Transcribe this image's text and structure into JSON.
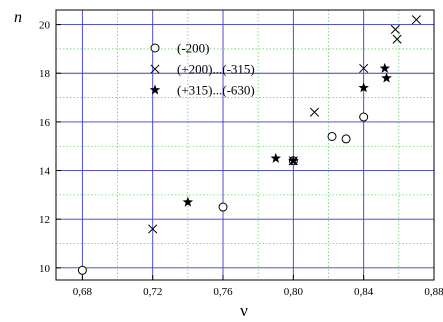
{
  "chart_data": {
    "type": "scatter",
    "xlabel": "ν",
    "ylabel": "n",
    "xlim": [
      0.665,
      0.88
    ],
    "ylim": [
      9.5,
      20.6
    ],
    "x_ticks": [
      0.68,
      0.72,
      0.76,
      0.8,
      0.84,
      0.88
    ],
    "x_tick_labels": [
      "0,68",
      "0,72",
      "0,76",
      "0,80",
      "0,84",
      "0,88"
    ],
    "y_ticks": [
      10,
      12,
      14,
      16,
      18,
      20
    ],
    "y_tick_labels": [
      "10",
      "12",
      "14",
      "16",
      "18",
      "20"
    ],
    "grid": "major solid blue, minor dotted green",
    "legend_position": "top-center",
    "series": [
      {
        "name": "(-200)",
        "marker": "circle",
        "points": [
          [
            0.68,
            9.9
          ],
          [
            0.76,
            12.5
          ],
          [
            0.8,
            14.4
          ],
          [
            0.822,
            15.4
          ],
          [
            0.83,
            15.3
          ],
          [
            0.84,
            16.2
          ]
        ]
      },
      {
        "name": "(+200)...(-315)",
        "marker": "cross",
        "points": [
          [
            0.72,
            11.6
          ],
          [
            0.8,
            14.4
          ],
          [
            0.812,
            16.4
          ],
          [
            0.84,
            18.2
          ],
          [
            0.858,
            19.8
          ],
          [
            0.859,
            19.4
          ],
          [
            0.87,
            20.2
          ]
        ]
      },
      {
        "name": "(+315)...(-630)",
        "marker": "star",
        "points": [
          [
            0.74,
            12.7
          ],
          [
            0.79,
            14.5
          ],
          [
            0.8,
            14.4
          ],
          [
            0.84,
            17.4
          ],
          [
            0.852,
            18.2
          ],
          [
            0.853,
            17.8
          ]
        ]
      }
    ]
  }
}
